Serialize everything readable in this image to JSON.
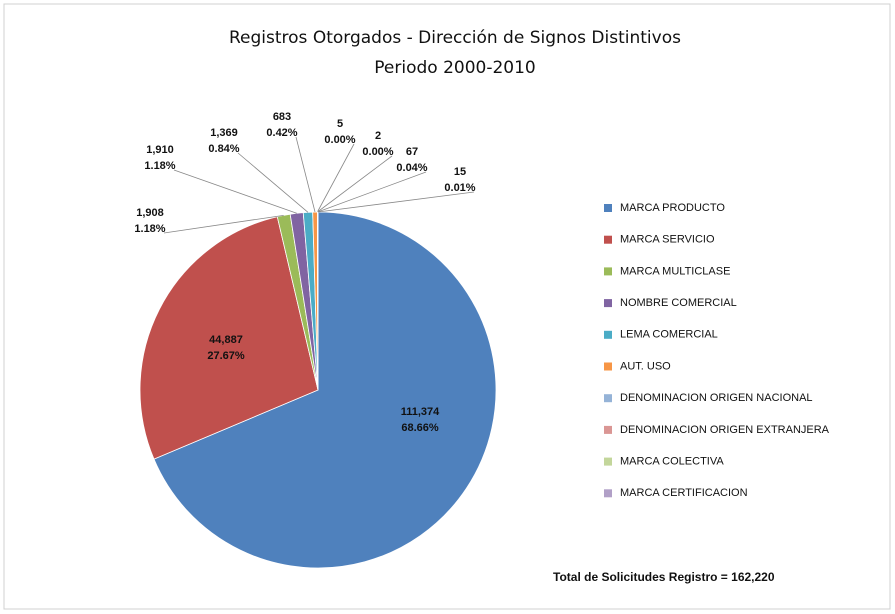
{
  "chart_data": {
    "type": "pie",
    "title": "Registros Otorgados - Dirección de Signos Distintivos",
    "subtitle": "Periodo 2000-2010",
    "categories": [
      "MARCA PRODUCTO",
      "MARCA SERVICIO",
      "MARCA MULTICLASE",
      "NOMBRE COMERCIAL",
      "LEMA COMERCIAL",
      "AUT. USO",
      "DENOMINACION ORIGEN NACIONAL",
      "DENOMINACION ORIGEN EXTRANJERA",
      "MARCA COLECTIVA",
      "MARCA CERTIFICACION"
    ],
    "values": [
      111374,
      44887,
      1908,
      1910,
      1369,
      683,
      5,
      2,
      67,
      15
    ],
    "value_labels": [
      "111,374",
      "44,887",
      "1,908",
      "1,910",
      "1,369",
      "683",
      "5",
      "2",
      "67",
      "15"
    ],
    "percent_labels": [
      "68.66%",
      "27.67%",
      "1.18%",
      "1.18%",
      "0.84%",
      "0.42%",
      "0.00%",
      "0.00%",
      "0.04%",
      "0.01%"
    ],
    "colors": [
      "#4f81bd",
      "#c0504d",
      "#9bbb59",
      "#8064a2",
      "#4bacc6",
      "#f79646",
      "#95b3d7",
      "#da9694",
      "#c3d69b",
      "#b1a0c7"
    ],
    "legend": "right",
    "note": "Total de Solicitudes  Registro = 162,220"
  }
}
